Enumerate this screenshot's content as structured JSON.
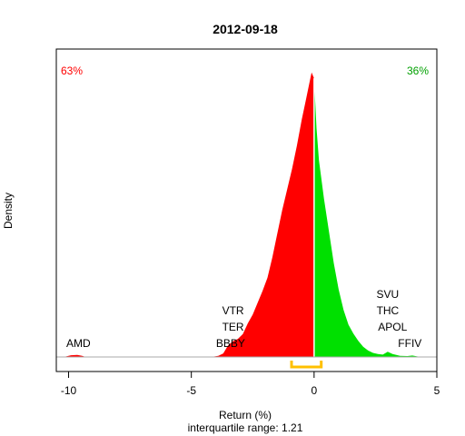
{
  "chart_data": {
    "type": "area",
    "title": "2012-09-18",
    "xlabel": "Return (%)",
    "ylabel": "Density",
    "subtitle": "interquartile range: 1.21",
    "xlim": [
      -10.5,
      5
    ],
    "ylim": [
      0,
      1
    ],
    "x_ticks": [
      -10,
      -5,
      0,
      5
    ],
    "grid": false,
    "negative_share_label": "63%",
    "positive_share_label": "36%",
    "negative_color": "#ff0000",
    "positive_color": "#00e000",
    "interquartile_range": [
      -0.92,
      0.29
    ],
    "iqr_color": "#ffc000",
    "density": {
      "x": [
        -10.2,
        -9.9,
        -9.65,
        -9.45,
        -9.3,
        -4.2,
        -3.9,
        -3.7,
        -3.5,
        -3.3,
        -3.1,
        -2.9,
        -2.7,
        -2.5,
        -2.3,
        -2.1,
        -1.9,
        -1.7,
        -1.5,
        -1.3,
        -1.1,
        -0.9,
        -0.7,
        -0.5,
        -0.35,
        -0.2,
        -0.1,
        0,
        0.1,
        0.2,
        0.4,
        0.6,
        0.8,
        1.0,
        1.2,
        1.4,
        1.6,
        1.8,
        2.0,
        2.2,
        2.4,
        2.6,
        2.8,
        3.0,
        3.2,
        3.5,
        3.8,
        4.0,
        4.2,
        4.4
      ],
      "y": [
        0,
        0.006,
        0.007,
        0.004,
        0,
        0,
        0.004,
        0.012,
        0.04,
        0.054,
        0.062,
        0.078,
        0.115,
        0.145,
        0.185,
        0.225,
        0.27,
        0.34,
        0.42,
        0.5,
        0.57,
        0.64,
        0.72,
        0.81,
        0.87,
        0.93,
        0.97,
        0.95,
        0.78,
        0.67,
        0.54,
        0.43,
        0.32,
        0.23,
        0.16,
        0.11,
        0.08,
        0.055,
        0.035,
        0.022,
        0.014,
        0.01,
        0.008,
        0.018,
        0.01,
        0.004,
        0.003,
        0.005,
        0.002,
        0
      ]
    },
    "annotations": [
      {
        "text": "AMD",
        "x": -9.6,
        "level": 0
      },
      {
        "text": "BBBY",
        "x": -3.4,
        "level": 0
      },
      {
        "text": "TER",
        "x": -3.3,
        "level": 1
      },
      {
        "text": "VTR",
        "x": -3.3,
        "level": 2
      },
      {
        "text": "FFIV",
        "x": 3.9,
        "level": 0
      },
      {
        "text": "APOL",
        "x": 3.2,
        "level": 1
      },
      {
        "text": "THC",
        "x": 3.0,
        "level": 2
      },
      {
        "text": "SVU",
        "x": 3.0,
        "level": 3
      }
    ]
  }
}
